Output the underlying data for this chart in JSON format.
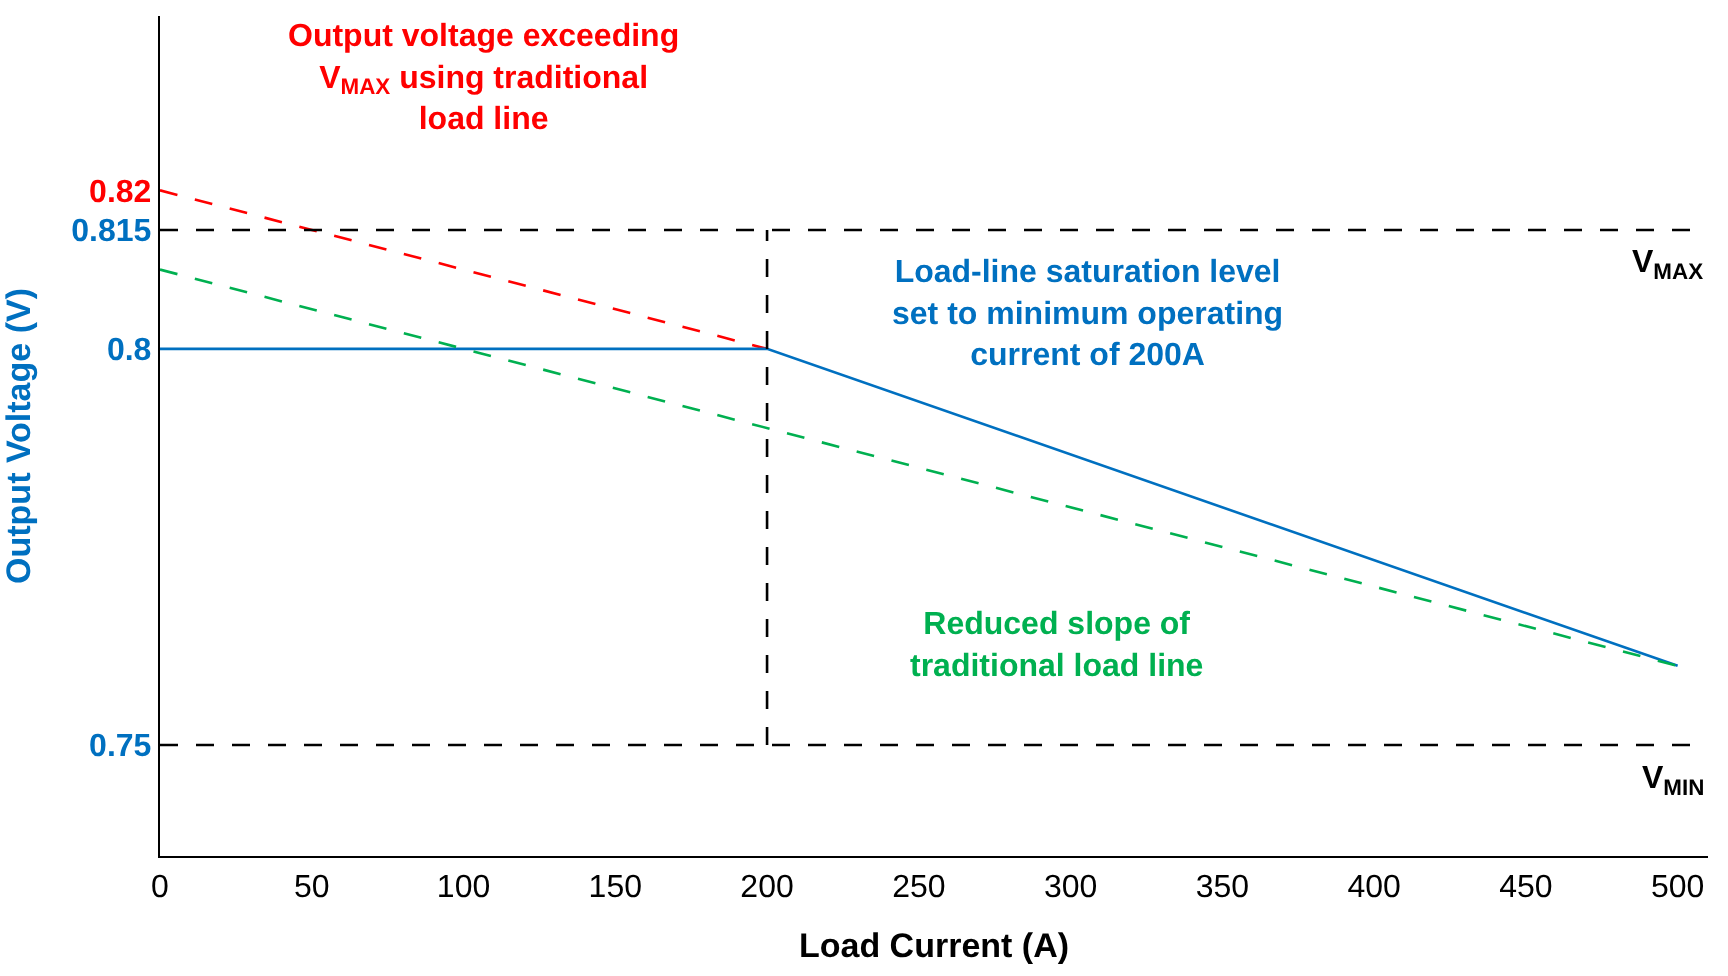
{
  "chart_data": {
    "type": "line",
    "xlabel": "Load Current (A)",
    "ylabel": "Output Voltage (V)",
    "series": [
      {
        "color": "#ff0000",
        "x": [
          0,
          200
        ],
        "values": [
          0.82,
          0.8
        ],
        "line_style": "dashed"
      },
      {
        "color": "#0070c0",
        "x": [
          0,
          200,
          500
        ],
        "values": [
          0.8,
          0.8,
          0.76
        ],
        "line_style": "solid"
      },
      {
        "color": "#00b050",
        "x": [
          0,
          500
        ],
        "values": [
          0.81,
          0.76
        ],
        "line_style": "dashed"
      },
      {
        "color": "#000000",
        "x": [
          200,
          200
        ],
        "values": [
          0.75,
          0.815
        ],
        "line_style": "dashed"
      }
    ],
    "xlim": [
      0,
      510
    ],
    "ylim": [
      0.736,
      0.842
    ],
    "xticks": [
      0,
      50,
      100,
      150,
      200,
      250,
      300,
      350,
      400,
      450,
      500
    ],
    "yticks": [
      0.75,
      0.8,
      0.815,
      0.82
    ],
    "ref_lines": [
      {
        "axis": "y",
        "value": 0.815,
        "label": "V$_{MAX}$",
        "color": "#000000",
        "line_style": "dashed"
      },
      {
        "axis": "y",
        "value": 0.75,
        "label": "V$_{MIN}$",
        "color": "#000000",
        "line_style": "dashed"
      }
    ],
    "annotations": [
      "Output voltage exceeding\nV$_{MAX}$ using traditional\nload line",
      "Load-line saturation level\nset to minimum operating\ncurrent of 200A",
      "Reduced slope of\ntraditional load line"
    ],
    "marker": "none"
  }
}
